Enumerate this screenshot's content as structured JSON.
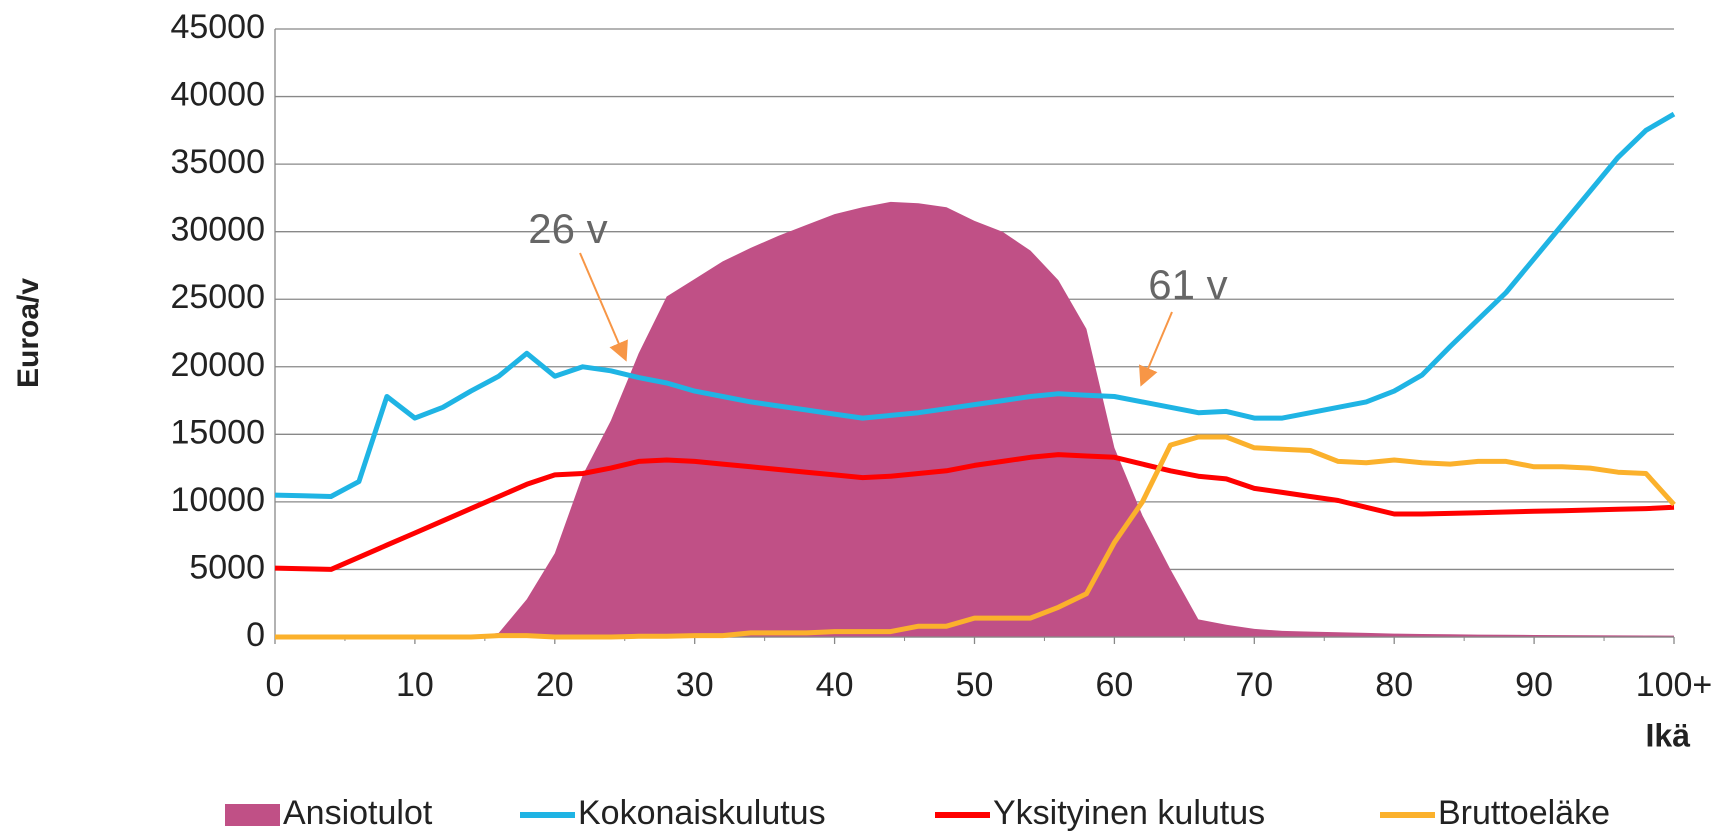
{
  "chart_data": {
    "type": "line",
    "ylabel": "Euroa/v",
    "xlabel": "Ikä",
    "annotations": [
      "26 v",
      "61 v"
    ],
    "x": [
      0,
      2,
      4,
      6,
      8,
      10,
      12,
      14,
      16,
      18,
      20,
      22,
      24,
      26,
      28,
      30,
      32,
      34,
      36,
      38,
      40,
      42,
      44,
      46,
      48,
      50,
      52,
      54,
      56,
      58,
      60,
      62,
      64,
      66,
      68,
      70,
      72,
      74,
      76,
      78,
      80,
      82,
      84,
      86,
      88,
      90,
      92,
      94,
      96,
      98,
      100
    ],
    "series": [
      {
        "name": "Ansiotulot",
        "kind": "area",
        "color": "#c05086",
        "values": [
          0,
          0,
          0,
          0,
          0,
          0,
          0,
          0,
          300,
          2800,
          6200,
          12000,
          16000,
          21000,
          25200,
          26500,
          27800,
          28800,
          29700,
          30500,
          31300,
          31800,
          32200,
          32100,
          31800,
          30800,
          30000,
          28600,
          26400,
          22800,
          14000,
          9000,
          5000,
          1300,
          900,
          600,
          450,
          400,
          350,
          300,
          250,
          220,
          200,
          180,
          160,
          150,
          140,
          130,
          120,
          110,
          100
        ]
      },
      {
        "name": "Kokonaiskulutus",
        "kind": "line",
        "color": "#1fb4e4",
        "values": [
          10500,
          10450,
          10400,
          11500,
          17800,
          16200,
          17000,
          18200,
          19300,
          21000,
          19300,
          20000,
          19700,
          19200,
          18800,
          18200,
          17800,
          17400,
          17100,
          16800,
          16500,
          16200,
          16400,
          16600,
          16900,
          17200,
          17500,
          17800,
          18000,
          17900,
          17800,
          17400,
          17000,
          16600,
          16700,
          16200,
          16200,
          16600,
          17000,
          17400,
          18200,
          19400,
          21500,
          23500,
          25500,
          28000,
          30500,
          33000,
          35500,
          37500,
          38700
        ]
      },
      {
        "name": "Yksityinen kulutus",
        "kind": "line",
        "color": "#ff0000",
        "values": [
          5100,
          5050,
          5000,
          5900,
          6800,
          7700,
          8600,
          9500,
          10400,
          11300,
          12000,
          12100,
          12500,
          13000,
          13100,
          13000,
          12800,
          12600,
          12400,
          12200,
          12000,
          11800,
          11900,
          12100,
          12300,
          12700,
          13000,
          13300,
          13500,
          13400,
          13300,
          12800,
          12300,
          11900,
          11700,
          11000,
          10700,
          10400,
          10100,
          9600,
          9100,
          9100,
          9150,
          9200,
          9250,
          9300,
          9350,
          9400,
          9450,
          9500,
          9600
        ]
      },
      {
        "name": "Bruttoeläke",
        "kind": "line",
        "color": "#fbb12c",
        "values": [
          0,
          0,
          0,
          0,
          0,
          0,
          0,
          0,
          100,
          100,
          0,
          0,
          0,
          50,
          50,
          100,
          100,
          300,
          300,
          300,
          400,
          400,
          400,
          800,
          800,
          1400,
          1400,
          1400,
          2200,
          3200,
          7000,
          10000,
          14200,
          14800,
          14800,
          14000,
          13900,
          13800,
          13000,
          12900,
          13100,
          12900,
          12800,
          13000,
          13000,
          12600,
          12600,
          12500,
          12200,
          12100,
          9800
        ]
      }
    ],
    "xlim": [
      0,
      100
    ],
    "xticks": [
      0,
      10,
      20,
      30,
      40,
      50,
      60,
      70,
      80,
      90,
      {
        "value": 100,
        "label": "100+"
      }
    ],
    "ylim": [
      0,
      45000
    ],
    "yticks": [
      0,
      5000,
      10000,
      15000,
      20000,
      25000,
      30000,
      35000,
      40000,
      45000
    ],
    "grid": true,
    "legend": "bottom"
  }
}
